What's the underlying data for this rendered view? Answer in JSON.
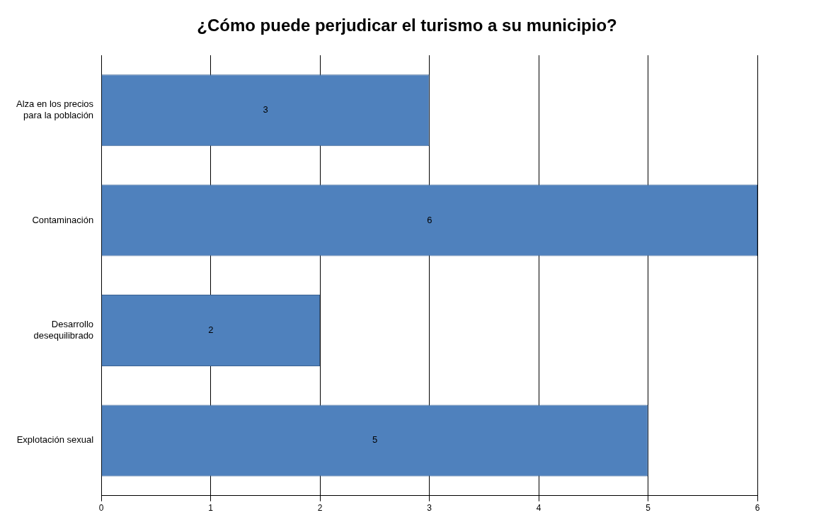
{
  "chart_data": {
    "type": "bar",
    "orientation": "horizontal",
    "title": "¿Cómo puede perjudicar el turismo a su municipio?",
    "categories": [
      "Alza en los precios para la población",
      "Contaminación",
      "Desarrollo desequilibrado",
      "Explotación sexual"
    ],
    "values": [
      3,
      6,
      2,
      5
    ],
    "color": "#4f81bd",
    "xlim": [
      0,
      6
    ],
    "xticks": [
      0,
      1,
      2,
      3,
      4,
      5,
      6
    ],
    "grid": "x",
    "legend": false,
    "data_labels": true
  }
}
